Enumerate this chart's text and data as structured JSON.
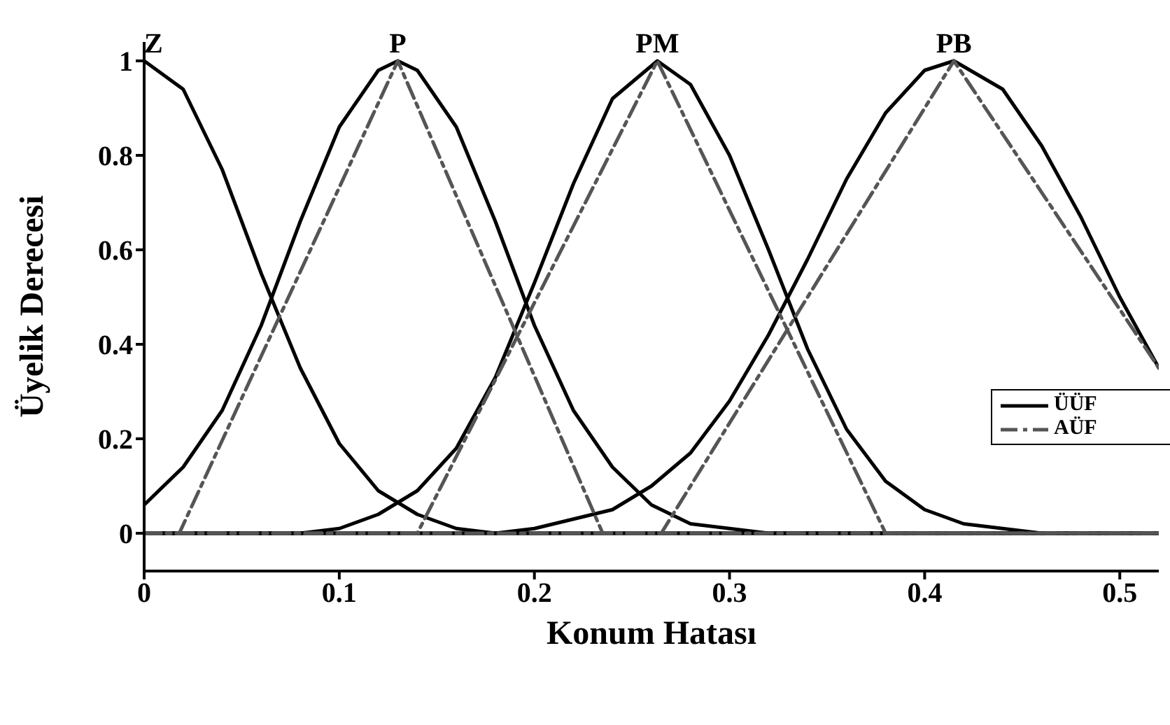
{
  "chart_data": {
    "type": "line",
    "xlabel": "Konum Hatası",
    "ylabel": "Üyelik Derecesi",
    "xlim": [
      0,
      0.52
    ],
    "ylim": [
      -0.08,
      1.04
    ],
    "xticks": [
      0,
      0.1,
      0.2,
      0.3,
      0.4,
      0.5
    ],
    "yticks": [
      0,
      0.2,
      0.4,
      0.6,
      0.8,
      1
    ],
    "legend": "right",
    "marker": "none",
    "series": [
      {
        "name": "ÜÜF",
        "color": "#000000",
        "line_style": "solid",
        "x": [
          0,
          0.02,
          0.04,
          0.06,
          0.08,
          0.1,
          0.12,
          0.14,
          0.16,
          0.18,
          0.2,
          0.52
        ],
        "values": [
          1,
          0.94,
          0.77,
          0.55,
          0.35,
          0.19,
          0.09,
          0.04,
          0.01,
          0,
          0,
          0
        ]
      },
      {
        "color": "#000000",
        "line_style": "solid",
        "x": [
          0,
          0.02,
          0.04,
          0.06,
          0.08,
          0.1,
          0.12,
          0.13,
          0.14,
          0.16,
          0.18,
          0.2,
          0.22,
          0.24,
          0.26,
          0.28,
          0.3,
          0.32,
          0.52
        ],
        "values": [
          0.06,
          0.14,
          0.26,
          0.44,
          0.66,
          0.86,
          0.98,
          1,
          0.98,
          0.86,
          0.66,
          0.44,
          0.26,
          0.14,
          0.06,
          0.02,
          0.01,
          0,
          0
        ]
      },
      {
        "color": "#000000",
        "line_style": "solid",
        "x": [
          0,
          0.08,
          0.1,
          0.12,
          0.14,
          0.16,
          0.18,
          0.2,
          0.22,
          0.24,
          0.263,
          0.28,
          0.3,
          0.32,
          0.34,
          0.36,
          0.38,
          0.4,
          0.42,
          0.44,
          0.46,
          0.52
        ],
        "values": [
          0,
          0,
          0.01,
          0.04,
          0.09,
          0.18,
          0.33,
          0.53,
          0.74,
          0.92,
          1,
          0.95,
          0.8,
          0.6,
          0.39,
          0.22,
          0.11,
          0.05,
          0.02,
          0.01,
          0,
          0
        ]
      },
      {
        "color": "#000000",
        "line_style": "solid",
        "x": [
          0,
          0.18,
          0.2,
          0.22,
          0.24,
          0.26,
          0.28,
          0.3,
          0.32,
          0.34,
          0.36,
          0.38,
          0.4,
          0.415,
          0.44,
          0.46,
          0.48,
          0.5,
          0.52
        ],
        "values": [
          0,
          0,
          0.01,
          0.03,
          0.05,
          0.1,
          0.17,
          0.28,
          0.42,
          0.58,
          0.75,
          0.89,
          0.98,
          1,
          0.94,
          0.82,
          0.67,
          0.5,
          0.35
        ]
      },
      {
        "name": "AÜF",
        "color": "#555555",
        "line_style": "dashed",
        "x": [
          0,
          0.018,
          0.13,
          0.235,
          0.52
        ],
        "values": [
          0,
          0,
          1,
          0,
          0
        ]
      },
      {
        "color": "#555555",
        "line_style": "dashed",
        "x": [
          0,
          0.14,
          0.263,
          0.38,
          0.52
        ],
        "values": [
          0,
          0,
          1,
          0,
          0
        ]
      },
      {
        "color": "#555555",
        "line_style": "dashed",
        "x": [
          0,
          0.265,
          0.415,
          0.52
        ],
        "values": [
          0,
          0,
          1,
          0.35
        ]
      }
    ],
    "ref_lines": [
      {
        "axis": "y",
        "value": 0,
        "color": "#808080"
      }
    ],
    "annotations": [
      "Z",
      "P",
      "PM",
      "PB"
    ]
  }
}
